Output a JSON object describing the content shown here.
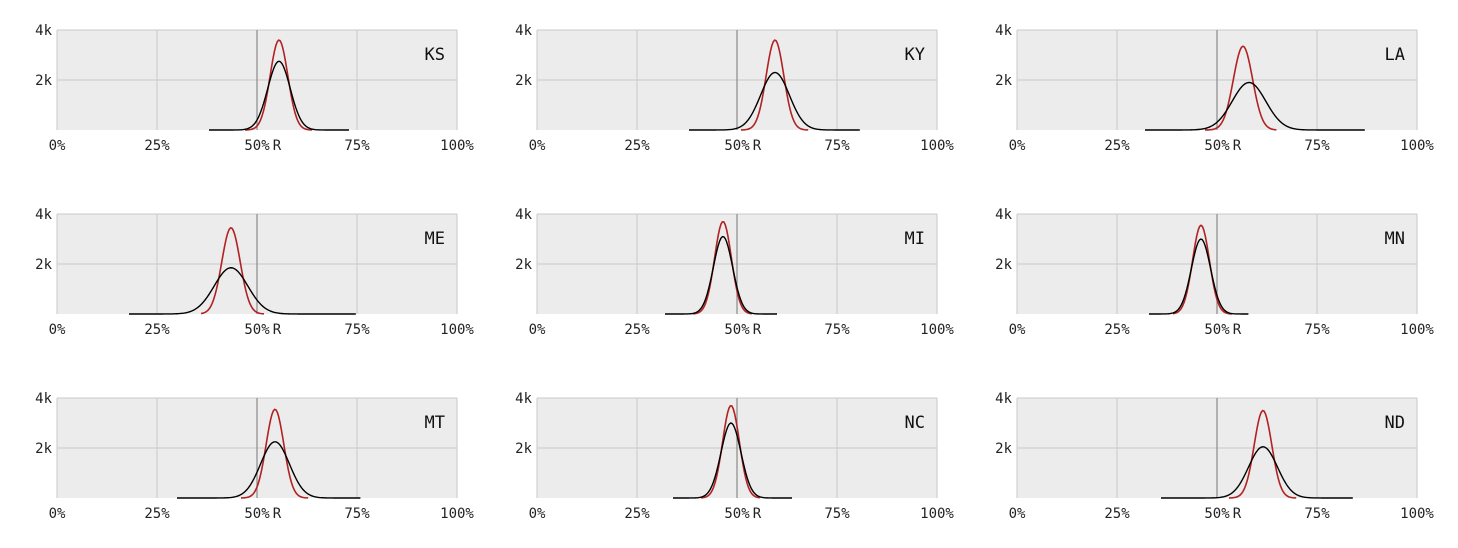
{
  "colors": {
    "panel_background": "#ececec",
    "grid": "#c8c8c8",
    "midline": "#8a8a8a",
    "series_red": "#b22222",
    "series_black": "#000000"
  },
  "axis": {
    "x_ticks": [
      0,
      25,
      50,
      75,
      100
    ],
    "x_tick_labels": [
      "0%",
      "25%",
      "50%",
      "75%",
      "100%"
    ],
    "x_extra_label": "R",
    "x_extra_label_at": 55,
    "y_ticks": [
      2000,
      4000
    ],
    "y_tick_labels": [
      "2k",
      "4k"
    ],
    "xlim": [
      0,
      100
    ],
    "ylim": [
      0,
      4000
    ],
    "midline_at": 50
  },
  "chart_data": [
    {
      "type": "line",
      "state": "KS",
      "xlim": [
        0,
        100
      ],
      "ylim": [
        0,
        4000
      ],
      "grid": true,
      "series": [
        {
          "color": "#b22222",
          "mean": 55.5,
          "sd": 2.2,
          "peak": 3600,
          "min": 47,
          "max": 64
        },
        {
          "color": "#000000",
          "mean": 55.5,
          "sd": 2.8,
          "peak": 2750,
          "min": 38,
          "max": 73
        }
      ]
    },
    {
      "type": "line",
      "state": "KY",
      "xlim": [
        0,
        100
      ],
      "ylim": [
        0,
        4000
      ],
      "grid": true,
      "series": [
        {
          "color": "#b22222",
          "mean": 59.5,
          "sd": 2.2,
          "peak": 3600,
          "min": 51,
          "max": 68
        },
        {
          "color": "#000000",
          "mean": 59.5,
          "sd": 3.6,
          "peak": 2300,
          "min": 38,
          "max": 81
        }
      ]
    },
    {
      "type": "line",
      "state": "LA",
      "xlim": [
        0,
        100
      ],
      "ylim": [
        0,
        4000
      ],
      "grid": true,
      "series": [
        {
          "color": "#b22222",
          "mean": 56.5,
          "sd": 2.4,
          "peak": 3350,
          "min": 47,
          "max": 65
        },
        {
          "color": "#000000",
          "mean": 58.0,
          "sd": 4.2,
          "peak": 1900,
          "min": 32,
          "max": 87
        }
      ]
    },
    {
      "type": "line",
      "state": "ME",
      "xlim": [
        0,
        100
      ],
      "ylim": [
        0,
        4000
      ],
      "grid": true,
      "series": [
        {
          "color": "#b22222",
          "mean": 43.5,
          "sd": 2.3,
          "peak": 3450,
          "min": 36,
          "max": 52
        },
        {
          "color": "#000000",
          "mean": 43.5,
          "sd": 4.2,
          "peak": 1850,
          "min": 18,
          "max": 75
        }
      ]
    },
    {
      "type": "line",
      "state": "MI",
      "xlim": [
        0,
        100
      ],
      "ylim": [
        0,
        4000
      ],
      "grid": true,
      "series": [
        {
          "color": "#b22222",
          "mean": 46.5,
          "sd": 2.1,
          "peak": 3700,
          "min": 39,
          "max": 54
        },
        {
          "color": "#000000",
          "mean": 46.5,
          "sd": 2.4,
          "peak": 3100,
          "min": 32,
          "max": 60
        }
      ]
    },
    {
      "type": "line",
      "state": "MN",
      "xlim": [
        0,
        100
      ],
      "ylim": [
        0,
        4000
      ],
      "grid": true,
      "series": [
        {
          "color": "#b22222",
          "mean": 46.0,
          "sd": 2.1,
          "peak": 3550,
          "min": 39,
          "max": 54
        },
        {
          "color": "#000000",
          "mean": 46.0,
          "sd": 2.4,
          "peak": 3000,
          "min": 33,
          "max": 58
        }
      ]
    },
    {
      "type": "line",
      "state": "MT",
      "xlim": [
        0,
        100
      ],
      "ylim": [
        0,
        4000
      ],
      "grid": true,
      "series": [
        {
          "color": "#b22222",
          "mean": 54.5,
          "sd": 2.2,
          "peak": 3550,
          "min": 46,
          "max": 63
        },
        {
          "color": "#000000",
          "mean": 54.5,
          "sd": 3.6,
          "peak": 2250,
          "min": 30,
          "max": 76
        }
      ]
    },
    {
      "type": "line",
      "state": "NC",
      "xlim": [
        0,
        100
      ],
      "ylim": [
        0,
        4000
      ],
      "grid": true,
      "series": [
        {
          "color": "#b22222",
          "mean": 48.5,
          "sd": 2.1,
          "peak": 3700,
          "min": 41,
          "max": 56
        },
        {
          "color": "#000000",
          "mean": 48.5,
          "sd": 2.5,
          "peak": 3000,
          "min": 34,
          "max": 64
        }
      ]
    },
    {
      "type": "line",
      "state": "ND",
      "xlim": [
        0,
        100
      ],
      "ylim": [
        0,
        4000
      ],
      "grid": true,
      "series": [
        {
          "color": "#b22222",
          "mean": 61.5,
          "sd": 2.2,
          "peak": 3500,
          "min": 53,
          "max": 70
        },
        {
          "color": "#000000",
          "mean": 61.5,
          "sd": 3.6,
          "peak": 2050,
          "min": 36,
          "max": 84
        }
      ]
    }
  ]
}
